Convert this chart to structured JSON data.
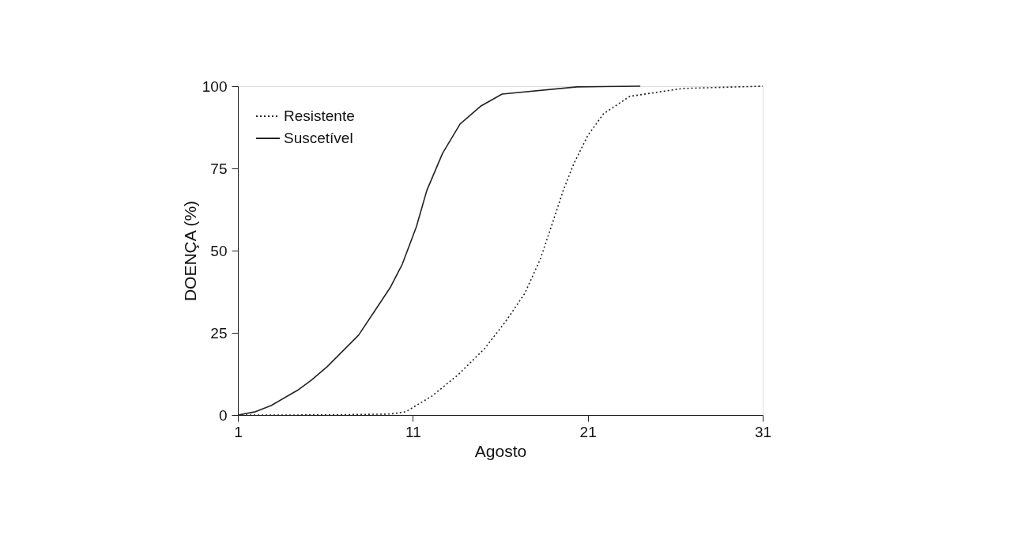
{
  "chart_data": {
    "type": "line",
    "xlabel": "Agosto",
    "ylabel": "DOENÇA (%)",
    "xlim": [
      1,
      31
    ],
    "xticks": [
      1,
      11,
      21,
      31
    ],
    "ylim": [
      0,
      100
    ],
    "yticks": [
      0,
      25,
      50,
      75,
      100
    ],
    "grid": false,
    "legend": "top left",
    "marker": "none",
    "series": [
      {
        "name": "Resistente",
        "color": "#222222",
        "line_style": "dotted",
        "x": [
          1,
          4,
          7,
          9.7,
          10.6,
          12.1,
          13.6,
          15.1,
          16.3,
          17.4,
          18.3,
          19,
          19.6,
          20.2,
          21,
          21.9,
          23.4,
          26.4,
          31
        ],
        "values": [
          0,
          0,
          0.1,
          0.3,
          1,
          5.8,
          12.3,
          20.2,
          28.4,
          37,
          47.6,
          58.7,
          68.3,
          76.4,
          85,
          91.6,
          96.9,
          99.3,
          100
        ]
      },
      {
        "name": "Suscetível",
        "color": "#222222",
        "line_style": "solid",
        "x": [
          1,
          2,
          2.9,
          4.4,
          5.2,
          6.1,
          7,
          7.9,
          8.8,
          9.7,
          10.4,
          11.2,
          11.8,
          12.7,
          13.7,
          14.9,
          16.1,
          20.4,
          24
        ],
        "values": [
          0,
          1,
          2.9,
          7.5,
          10.6,
          14.7,
          19.5,
          24.3,
          31.5,
          38.7,
          45.9,
          57.2,
          68.3,
          79.6,
          88.5,
          94,
          97.6,
          99.8,
          100
        ]
      }
    ]
  }
}
